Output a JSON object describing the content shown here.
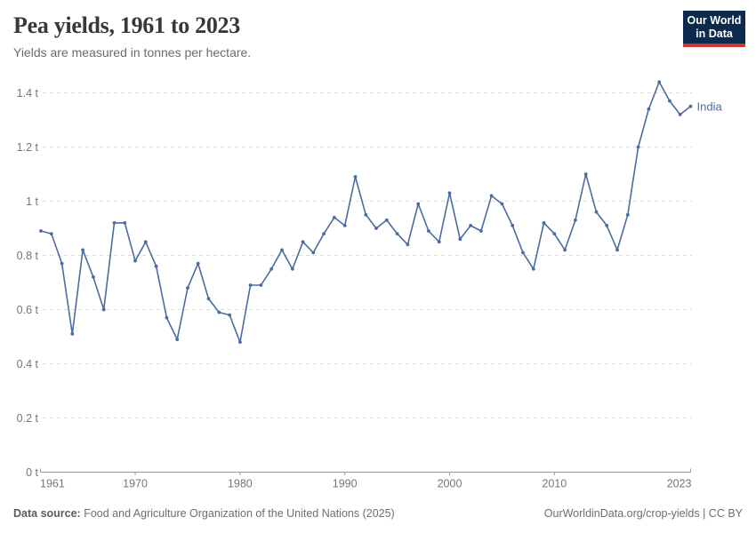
{
  "header": {
    "title": "Pea yields, 1961 to 2023",
    "subtitle": "Yields are measured in tonnes per hectare."
  },
  "logo": {
    "line1": "Our World",
    "line2": "in Data",
    "bg_color": "#0B2A4C",
    "accent_color": "#CE392E"
  },
  "chart_data": {
    "type": "line",
    "title": "Pea yields, 1961 to 2023",
    "subtitle": "Yields are measured in tonnes per hectare.",
    "unit": "tonnes per hectare",
    "ylim": [
      0,
      1.4
    ],
    "grid": "horizontal-dashed",
    "legend_position": "end-of-line",
    "x": [
      1961,
      1962,
      1963,
      1964,
      1965,
      1966,
      1967,
      1968,
      1969,
      1970,
      1971,
      1972,
      1973,
      1974,
      1975,
      1976,
      1977,
      1978,
      1979,
      1980,
      1981,
      1982,
      1983,
      1984,
      1985,
      1986,
      1987,
      1988,
      1989,
      1990,
      1991,
      1992,
      1993,
      1994,
      1995,
      1996,
      1997,
      1998,
      1999,
      2000,
      2001,
      2002,
      2003,
      2004,
      2005,
      2006,
      2007,
      2008,
      2009,
      2010,
      2011,
      2012,
      2013,
      2014,
      2015,
      2016,
      2017,
      2018,
      2019,
      2020,
      2021,
      2022,
      2023
    ],
    "series": [
      {
        "name": "India",
        "color": "#4C6B9E",
        "values": [
          0.89,
          0.88,
          0.77,
          0.51,
          0.82,
          0.72,
          0.6,
          0.92,
          0.92,
          0.78,
          0.85,
          0.76,
          0.57,
          0.49,
          0.68,
          0.77,
          0.64,
          0.59,
          0.58,
          0.48,
          0.69,
          0.69,
          0.75,
          0.82,
          0.75,
          0.85,
          0.81,
          0.88,
          0.94,
          0.91,
          1.09,
          0.95,
          0.9,
          0.93,
          0.88,
          0.84,
          0.99,
          0.89,
          0.85,
          1.03,
          0.86,
          0.91,
          0.89,
          1.02,
          0.99,
          0.91,
          0.81,
          0.75,
          0.92,
          0.88,
          0.82,
          0.93,
          1.1,
          0.96,
          0.91,
          0.82,
          0.95,
          1.2,
          1.34,
          1.44,
          1.37,
          1.32,
          1.35
        ]
      }
    ],
    "y_ticks": [
      {
        "value": 0,
        "label": "0 t"
      },
      {
        "value": 0.2,
        "label": "0.2 t"
      },
      {
        "value": 0.4,
        "label": "0.4 t"
      },
      {
        "value": 0.6,
        "label": "0.6 t"
      },
      {
        "value": 0.8,
        "label": "0.8 t"
      },
      {
        "value": 1,
        "label": "1 t"
      },
      {
        "value": 1.2,
        "label": "1.2 t"
      },
      {
        "value": 1.4,
        "label": "1.4 t"
      }
    ],
    "x_ticks": [
      {
        "value": 1961,
        "label": "1961"
      },
      {
        "value": 1970,
        "label": "1970"
      },
      {
        "value": 1980,
        "label": "1980"
      },
      {
        "value": 1990,
        "label": "1990"
      },
      {
        "value": 2000,
        "label": "2000"
      },
      {
        "value": 2010,
        "label": "2010"
      },
      {
        "value": 2023,
        "label": "2023"
      }
    ]
  },
  "footer": {
    "source_label": "Data source:",
    "source_text": " Food and Agriculture Organization of the United Nations (2025)",
    "right_text": "OurWorldinData.org/crop-yields | CC BY"
  }
}
